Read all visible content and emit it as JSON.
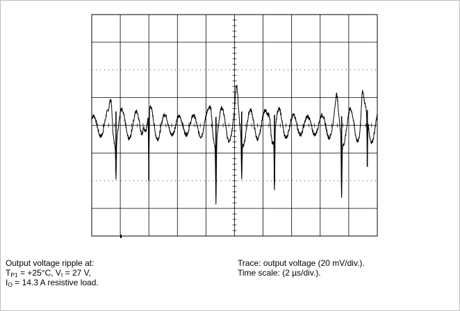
{
  "chart_data": {
    "type": "line",
    "title": "",
    "xlabel": "",
    "ylabel": "",
    "grid": true,
    "x_unit": "µs",
    "y_unit": "mV",
    "x_per_div": 2,
    "y_per_div": 20,
    "x_divisions": 10,
    "y_divisions": 8,
    "xlim": [
      0,
      20
    ],
    "ylim": [
      -80,
      80
    ],
    "series": [
      {
        "name": "",
        "description_of_shape": "quasi-periodic ringing about 0 mV with sharp negative spikes",
        "ripple_period_us": 1.0,
        "ripple_amplitude_mv": 10,
        "spikes": [
          {
            "x": 1.7,
            "peak_mv": 20,
            "trough_mv": -25
          },
          {
            "x": 4.0,
            "peak_mv": 12,
            "trough_mv": -40
          },
          {
            "x": 8.7,
            "peak_mv": 12,
            "trough_mv": -42
          },
          {
            "x": 10.5,
            "peak_mv": 20,
            "trough_mv": -27
          },
          {
            "x": 12.8,
            "peak_mv": 15,
            "trough_mv": -40
          },
          {
            "x": 17.5,
            "peak_mv": 13,
            "trough_mv": -42
          },
          {
            "x": 19.3,
            "peak_mv": 22,
            "trough_mv": -30
          }
        ]
      }
    ]
  },
  "caption_left": {
    "line1": "Output voltage ripple  at:",
    "t_sym": "T",
    "t_sub": "P1",
    "t_val": " = +25°C, V",
    "v_sub": "I",
    "v_val": " = 27 V,",
    "i_sym": "I",
    "i_sub": "O",
    "i_val": " = 14.3 A resistive load."
  },
  "caption_right": {
    "line1": "Trace: output voltage (20 mV/div.).",
    "line2": "Time scale: (2 µs/div.)."
  }
}
